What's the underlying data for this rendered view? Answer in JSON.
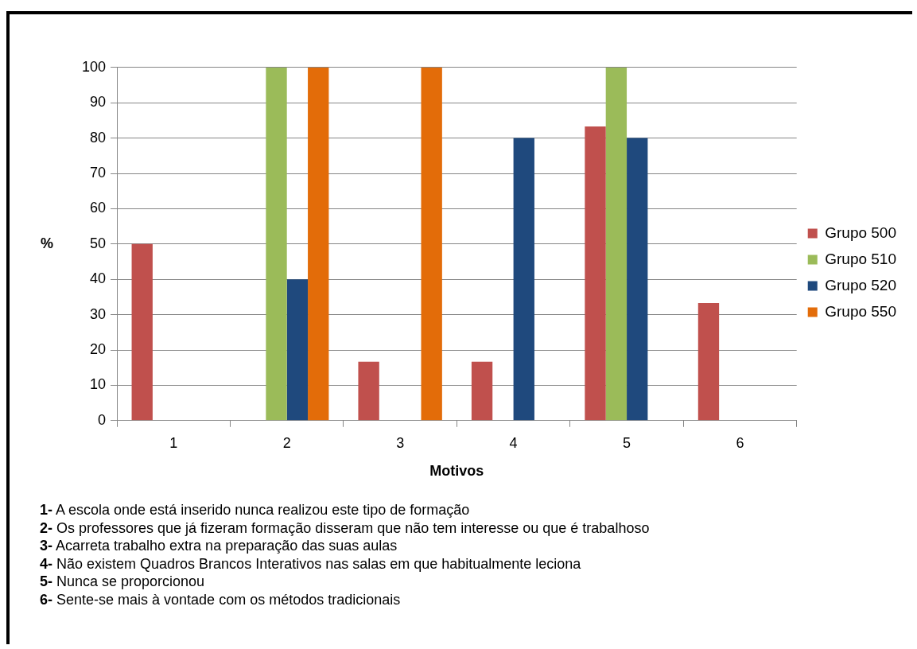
{
  "chart_data": {
    "type": "bar",
    "categories": [
      "1",
      "2",
      "3",
      "4",
      "5",
      "6"
    ],
    "xlabel": "Motivos",
    "ylabel": "%",
    "ylim": [
      0,
      100
    ],
    "yticks": [
      0,
      10,
      20,
      30,
      40,
      50,
      60,
      70,
      80,
      90,
      100
    ],
    "grid": "y",
    "legend": "right",
    "series": [
      {
        "name": "Grupo 500",
        "color": "#c0504d",
        "values": [
          50,
          0,
          16.7,
          16.7,
          83.3,
          33.3
        ]
      },
      {
        "name": "Grupo 510",
        "color": "#9bbb59",
        "values": [
          0,
          100,
          0,
          0,
          100,
          0
        ]
      },
      {
        "name": "Grupo 520",
        "color": "#1f497d",
        "values": [
          0,
          40,
          0,
          80,
          80,
          0
        ]
      },
      {
        "name": "Grupo 550",
        "color": "#e36c09",
        "values": [
          0,
          100,
          100,
          0,
          0,
          0
        ]
      }
    ],
    "annotations": [
      "1- A escola onde está inserido nunca realizou este tipo de formação",
      "2- Os professores que já fizeram formação disseram que não tem interesse ou que é trabalhoso",
      "3- Acarreta trabalho extra na preparação das suas aulas",
      "4- Não existem Quadros Brancos Interativos nas salas em que habitualmente leciona",
      "5- Nunca se proporcionou",
      "6- Sente-se mais à vontade com os métodos tradicionais"
    ]
  }
}
